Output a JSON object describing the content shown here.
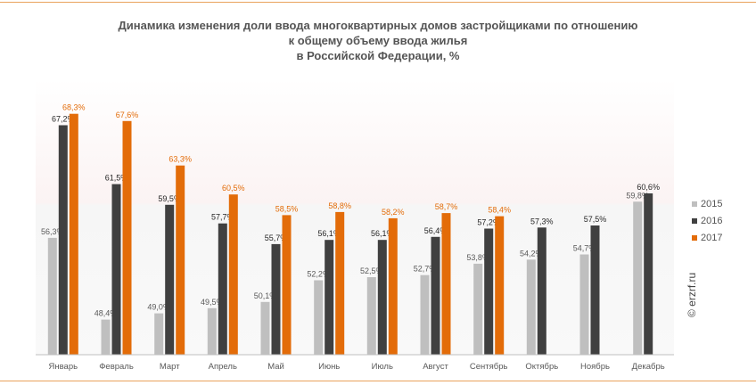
{
  "chart_data": {
    "type": "bar",
    "title": [
      "Динамика изменения доли ввода многоквартирных домов застройщиками по отношению",
      "к общему объему ввода жилья",
      "в Российской Федерации, %"
    ],
    "categories": [
      "Январь",
      "Февраль",
      "Март",
      "Апрель",
      "Май",
      "Июнь",
      "Июль",
      "Август",
      "Сентябрь",
      "Октябрь",
      "Ноябрь",
      "Декабрь"
    ],
    "series": [
      {
        "name": "2015",
        "color": "#bfbfbf",
        "labelColor": "#595959",
        "values": [
          56.3,
          48.4,
          49.0,
          49.5,
          50.1,
          52.2,
          52.5,
          52.7,
          53.8,
          54.2,
          54.7,
          59.8
        ],
        "labels": [
          "56,3%",
          "48,4%",
          "49,0%",
          "49,5%",
          "50,1%",
          "52,2%",
          "52,5%",
          "52,7%",
          "53,8%",
          "54,2%",
          "54,7%",
          "59,8%"
        ]
      },
      {
        "name": "2016",
        "color": "#404040",
        "labelColor": "#262626",
        "values": [
          67.2,
          61.5,
          59.5,
          57.7,
          55.7,
          56.1,
          56.1,
          56.4,
          57.2,
          57.3,
          57.5,
          60.6
        ],
        "labels": [
          "67,2%",
          "61,5%",
          "59,5%",
          "57,7%",
          "55,7%",
          "56,1%",
          "56,1%",
          "56,4%",
          "57,2%",
          "57,3%",
          "57,5%",
          "60,6%"
        ]
      },
      {
        "name": "2017",
        "color": "#e36c09",
        "labelColor": "#e36c09",
        "values": [
          68.3,
          67.6,
          63.3,
          60.5,
          58.5,
          58.8,
          58.2,
          58.7,
          58.4,
          null,
          null,
          null
        ],
        "labels": [
          "68,3%",
          "67,6%",
          "63,3%",
          "60,5%",
          "58,5%",
          "58,8%",
          "58,2%",
          "58,7%",
          "58,4%",
          null,
          null,
          null
        ]
      }
    ],
    "ylim": [
      45,
      70
    ],
    "grid": false,
    "legend_position": "right"
  },
  "watermark": "© erzrf.ru"
}
